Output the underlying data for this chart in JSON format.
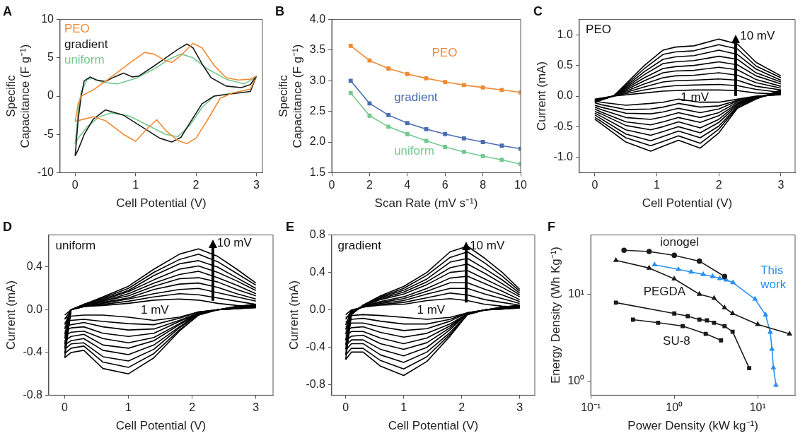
{
  "chart_data": [
    {
      "type": "line",
      "title": "A",
      "xlabel": "Cell Potential (V)",
      "ylabel": "Specific  Capacitance (F g⁻¹)",
      "xlim": [
        -0.25,
        3.1
      ],
      "xticks": [
        0,
        1,
        2,
        3
      ],
      "ylim": [
        -10,
        10
      ],
      "yticks": [
        -10,
        -5,
        0,
        5,
        10
      ],
      "legend": "top left",
      "series": [
        {
          "name": "PEO",
          "color": "#f08a35",
          "x": [
            0,
            0.05,
            0.1,
            0.3,
            0.6,
            0.9,
            1.15,
            1.3,
            1.5,
            1.6,
            1.75,
            1.95,
            2.1,
            2.3,
            2.5,
            2.7,
            2.9,
            3
          ],
          "values": [
            -3.3,
            -1,
            0,
            0.8,
            2.5,
            4.3,
            5.7,
            5.5,
            4.6,
            4.4,
            5.3,
            6.9,
            6.3,
            4,
            2.4,
            2.1,
            2.2,
            2.6
          ]
        },
        {
          "name": "gradient",
          "color": "#1a1a1a",
          "x": [
            0,
            0.05,
            0.1,
            0.15,
            0.25,
            0.35,
            0.5,
            0.65,
            0.8,
            0.95,
            1.05,
            1.3,
            1.5,
            1.7,
            1.85,
            1.95,
            2.1,
            2.25,
            2.5,
            2.75,
            2.9,
            3
          ],
          "values": [
            -7.8,
            -3,
            0,
            2,
            2.5,
            2.1,
            1.9,
            2.5,
            3,
            2.5,
            2.6,
            3.9,
            5,
            6.1,
            6.8,
            6.3,
            4.2,
            2.4,
            1.3,
            1.1,
            1.5,
            2.6
          ]
        },
        {
          "name": "uniform",
          "color": "#74c98e",
          "x": [
            0,
            0.05,
            0.1,
            0.2,
            0.3,
            0.45,
            0.7,
            1,
            1.3,
            1.55,
            1.75,
            1.95,
            2.2,
            2.5,
            2.8,
            3
          ],
          "values": [
            -6.3,
            -2,
            0.5,
            2.2,
            2.3,
            1.8,
            1.6,
            2.3,
            3.5,
            4.8,
            5.5,
            5,
            3.5,
            2.2,
            1.6,
            2.5
          ]
        },
        {
          "color": "#f08a35",
          "x": [
            3,
            2.9,
            2.6,
            2.4,
            2.2,
            2,
            1.85,
            1.7,
            1.5,
            1.35,
            1.2,
            1,
            0.8,
            0.5,
            0.3,
            0.1,
            0
          ],
          "values": [
            2.6,
            0.9,
            0.4,
            -0.3,
            -3,
            -5.5,
            -6.2,
            -5.8,
            -4.5,
            -3.1,
            -4.2,
            -5.9,
            -5,
            -3.2,
            -2.7,
            -3.1,
            -3.3
          ]
        },
        {
          "color": "#1a1a1a",
          "x": [
            3,
            2.9,
            2.6,
            2.3,
            2.1,
            1.9,
            1.75,
            1.6,
            1.4,
            1.1,
            0.8,
            0.5,
            0.3,
            0.15,
            0.05,
            0
          ],
          "values": [
            2.6,
            0.6,
            0.3,
            0,
            -1,
            -3.5,
            -5.4,
            -6,
            -5.5,
            -4,
            -2.5,
            -1.8,
            -3,
            -5,
            -7,
            -7.8
          ]
        },
        {
          "color": "#74c98e",
          "x": [
            3,
            2.9,
            2.6,
            2.3,
            2.1,
            1.9,
            1.7,
            1.5,
            1.2,
            0.9,
            0.6,
            0.4,
            0.2,
            0.05,
            0
          ],
          "values": [
            2.5,
            0.9,
            0.4,
            0,
            -1.5,
            -3.8,
            -5.3,
            -5,
            -3.8,
            -2.6,
            -2.2,
            -2.7,
            -4,
            -5.5,
            -6.3
          ]
        }
      ]
    },
    {
      "type": "line",
      "title": "B",
      "xlabel": "Scan Rate (mV s⁻¹)",
      "ylabel": "Specific Capacitance (F g⁻¹)",
      "marker": "square",
      "x": [
        1,
        2,
        3,
        4,
        5,
        6,
        7,
        8,
        9,
        10
      ],
      "xlim": [
        0,
        10
      ],
      "xticks": [
        0,
        2,
        4,
        6,
        8,
        10
      ],
      "ylim": [
        1.5,
        4
      ],
      "yticks": [
        {
          "value": 1.5,
          "label": "1.5"
        },
        {
          "value": 2,
          "label": "2.0"
        },
        {
          "value": 2.5,
          "label": "2.5"
        },
        {
          "value": 3,
          "label": "3.0"
        },
        {
          "value": 3.5,
          "label": "3.5"
        },
        {
          "value": 4,
          "label": "4.0"
        }
      ],
      "series": [
        {
          "name": "PEO",
          "color": "#f08a35",
          "values": [
            3.57,
            3.33,
            3.2,
            3.11,
            3.04,
            2.98,
            2.93,
            2.89,
            2.85,
            2.81
          ]
        },
        {
          "name": "gradient",
          "color": "#4a6cb3",
          "values": [
            3.0,
            2.63,
            2.44,
            2.31,
            2.21,
            2.13,
            2.06,
            2.0,
            1.94,
            1.89
          ]
        },
        {
          "name": "uniform",
          "color": "#74c98e",
          "values": [
            2.8,
            2.43,
            2.25,
            2.13,
            2.02,
            1.92,
            1.84,
            1.77,
            1.71,
            1.64
          ]
        }
      ]
    },
    {
      "type": "line",
      "title": "C",
      "xlabel": "Cell Potential (V)",
      "ylabel": "Current (mA)",
      "xlim": [
        -0.25,
        3.23
      ],
      "xticks": [
        0,
        1,
        2,
        3
      ],
      "ylim": [
        -1.25,
        1.25
      ],
      "yticks": [
        {
          "value": -1,
          "label": "-1.0"
        },
        {
          "value": -0.5,
          "label": "-0.5"
        },
        {
          "value": 0,
          "label": "0.0"
        },
        {
          "value": 0.5,
          "label": "0.5"
        },
        {
          "value": 1,
          "label": "1.0"
        }
      ],
      "annotations": [
        "PEO",
        "10 mV",
        "1 mV"
      ],
      "x": [
        0,
        0.3,
        0.8,
        1.1,
        1.3,
        1.6,
        2,
        2.3,
        2.6,
        3
      ],
      "series": [
        {
          "color": "#000000",
          "values": [
            -0.05,
            0,
            0.05,
            0.08,
            0.09,
            0.1,
            0.1,
            0.09,
            0.05,
            0.03
          ]
        },
        {
          "color": "#000000",
          "values": [
            -0.06,
            0,
            0.1,
            0.15,
            0.17,
            0.18,
            0.19,
            0.17,
            0.11,
            0.06
          ]
        },
        {
          "color": "#000000",
          "values": [
            -0.06,
            0,
            0.15,
            0.23,
            0.25,
            0.26,
            0.28,
            0.26,
            0.16,
            0.1
          ]
        },
        {
          "color": "#000000",
          "values": [
            -0.07,
            0,
            0.2,
            0.3,
            0.33,
            0.34,
            0.38,
            0.34,
            0.22,
            0.13
          ]
        },
        {
          "color": "#000000",
          "values": [
            -0.07,
            0,
            0.25,
            0.38,
            0.41,
            0.42,
            0.47,
            0.43,
            0.27,
            0.16
          ]
        },
        {
          "color": "#000000",
          "values": [
            -0.08,
            0,
            0.3,
            0.45,
            0.48,
            0.5,
            0.56,
            0.51,
            0.33,
            0.2
          ]
        },
        {
          "color": "#000000",
          "values": [
            -0.08,
            0,
            0.35,
            0.53,
            0.56,
            0.58,
            0.65,
            0.6,
            0.38,
            0.23
          ]
        },
        {
          "color": "#000000",
          "values": [
            -0.09,
            0,
            0.4,
            0.6,
            0.64,
            0.66,
            0.75,
            0.68,
            0.44,
            0.26
          ]
        },
        {
          "color": "#000000",
          "values": [
            -0.09,
            0,
            0.45,
            0.68,
            0.72,
            0.74,
            0.84,
            0.77,
            0.49,
            0.3
          ]
        },
        {
          "color": "#000000",
          "values": [
            -0.1,
            0,
            0.5,
            0.75,
            0.8,
            0.82,
            0.93,
            0.85,
            0.55,
            0.33
          ]
        },
        {
          "color": "#000000",
          "x": [
            3,
            2.6,
            2.3,
            2,
            1.7,
            1.35,
            1.1,
            0.9,
            0.5,
            0.1,
            0
          ],
          "values": [
            0.02,
            0,
            -0.05,
            -0.1,
            -0.1,
            -0.05,
            -0.1,
            -0.12,
            -0.15,
            -0.1,
            -0.08
          ]
        },
        {
          "color": "#000000",
          "x": [
            3,
            2.6,
            2.3,
            2,
            1.7,
            1.35,
            1.1,
            0.9,
            0.5,
            0.1,
            0
          ],
          "values": [
            0.03,
            -0.01,
            -0.07,
            -0.16,
            -0.18,
            -0.12,
            -0.18,
            -0.21,
            -0.22,
            -0.14,
            -0.11
          ]
        },
        {
          "color": "#000000",
          "x": [
            3,
            2.6,
            2.3,
            2,
            1.7,
            1.35,
            1.1,
            0.9,
            0.5,
            0.1,
            0
          ],
          "values": [
            0.04,
            -0.01,
            -0.08,
            -0.21,
            -0.27,
            -0.2,
            -0.26,
            -0.29,
            -0.28,
            -0.18,
            -0.15
          ]
        },
        {
          "color": "#000000",
          "x": [
            3,
            2.6,
            2.3,
            2,
            1.7,
            1.35,
            1.1,
            0.9,
            0.5,
            0.1,
            0
          ],
          "values": [
            0.05,
            -0.02,
            -0.1,
            -0.27,
            -0.35,
            -0.27,
            -0.34,
            -0.38,
            -0.35,
            -0.22,
            -0.18
          ]
        },
        {
          "color": "#000000",
          "x": [
            3,
            2.6,
            2.3,
            2,
            1.7,
            1.35,
            1.1,
            0.9,
            0.5,
            0.1,
            0
          ],
          "values": [
            0.06,
            -0.02,
            -0.12,
            -0.32,
            -0.43,
            -0.35,
            -0.42,
            -0.47,
            -0.42,
            -0.26,
            -0.21
          ]
        },
        {
          "color": "#000000",
          "x": [
            3,
            2.6,
            2.3,
            2,
            1.7,
            1.35,
            1.1,
            0.9,
            0.5,
            0.1,
            0
          ],
          "values": [
            0.06,
            -0.03,
            -0.13,
            -0.38,
            -0.52,
            -0.42,
            -0.5,
            -0.55,
            -0.48,
            -0.29,
            -0.25
          ]
        },
        {
          "color": "#000000",
          "x": [
            3,
            2.6,
            2.3,
            2,
            1.7,
            1.35,
            1.1,
            0.9,
            0.5,
            0.1,
            0
          ],
          "values": [
            0.07,
            -0.03,
            -0.15,
            -0.43,
            -0.6,
            -0.5,
            -0.58,
            -0.64,
            -0.55,
            -0.33,
            -0.28
          ]
        },
        {
          "color": "#000000",
          "x": [
            3,
            2.6,
            2.3,
            2,
            1.7,
            1.35,
            1.1,
            0.9,
            0.5,
            0.1,
            0
          ],
          "values": [
            0.08,
            -0.04,
            -0.17,
            -0.49,
            -0.68,
            -0.57,
            -0.66,
            -0.73,
            -0.62,
            -0.37,
            -0.31
          ]
        },
        {
          "color": "#000000",
          "x": [
            3,
            2.6,
            2.3,
            2,
            1.7,
            1.35,
            1.1,
            0.9,
            0.5,
            0.1,
            0
          ],
          "values": [
            0.09,
            -0.04,
            -0.18,
            -0.54,
            -0.77,
            -0.65,
            -0.74,
            -0.81,
            -0.68,
            -0.41,
            -0.35
          ]
        },
        {
          "color": "#000000",
          "x": [
            3,
            2.6,
            2.3,
            2,
            1.7,
            1.35,
            1.1,
            0.9,
            0.5,
            0.1,
            0
          ],
          "values": [
            0.1,
            -0.05,
            -0.2,
            -0.6,
            -0.85,
            -0.72,
            -0.82,
            -0.9,
            -0.75,
            -0.45,
            -0.38
          ]
        }
      ]
    },
    {
      "type": "line",
      "title": "D",
      "xlabel": "Cell Potential (V)",
      "ylabel": "Current (mA)",
      "xlim": [
        -0.25,
        3.27
      ],
      "xticks": [
        0,
        1,
        2,
        3
      ],
      "ylim": [
        -0.8,
        0.7
      ],
      "yticks": [
        {
          "value": -0.8,
          "label": "-0.8"
        },
        {
          "value": -0.4,
          "label": "-0.4"
        },
        {
          "value": 0,
          "label": "0.0"
        },
        {
          "value": 0.4,
          "label": "0.4"
        }
      ],
      "annotations": [
        "uniform",
        "10 mV",
        "1 mV"
      ],
      "x": [
        0,
        0.1,
        0.3,
        0.6,
        1,
        1.4,
        1.8,
        2.1,
        2.4,
        2.7,
        3
      ],
      "series": [
        {
          "color": "#000000",
          "values": [
            -0.05,
            0,
            0.03,
            0.04,
            0.06,
            0.09,
            0.1,
            0.09,
            0.06,
            0.04,
            0.03
          ]
        },
        {
          "color": "#000000",
          "values": [
            -0.09,
            0,
            0.03,
            0.05,
            0.08,
            0.12,
            0.15,
            0.14,
            0.11,
            0.08,
            0.05
          ]
        },
        {
          "color": "#000000",
          "values": [
            -0.14,
            0,
            0.03,
            0.06,
            0.1,
            0.15,
            0.19,
            0.2,
            0.16,
            0.12,
            0.08
          ]
        },
        {
          "color": "#000000",
          "values": [
            -0.18,
            0,
            0.04,
            0.07,
            0.11,
            0.19,
            0.24,
            0.25,
            0.21,
            0.15,
            0.1
          ]
        },
        {
          "color": "#000000",
          "values": [
            -0.23,
            0,
            0.04,
            0.08,
            0.13,
            0.22,
            0.29,
            0.3,
            0.26,
            0.19,
            0.13
          ]
        },
        {
          "color": "#000000",
          "values": [
            -0.27,
            0,
            0.04,
            0.08,
            0.15,
            0.25,
            0.33,
            0.36,
            0.3,
            0.23,
            0.15
          ]
        },
        {
          "color": "#000000",
          "values": [
            -0.32,
            0,
            0.04,
            0.09,
            0.17,
            0.28,
            0.38,
            0.41,
            0.35,
            0.27,
            0.18
          ]
        },
        {
          "color": "#000000",
          "values": [
            -0.36,
            0,
            0.05,
            0.1,
            0.18,
            0.32,
            0.43,
            0.46,
            0.4,
            0.3,
            0.2
          ]
        },
        {
          "color": "#000000",
          "values": [
            -0.41,
            0,
            0.05,
            0.11,
            0.2,
            0.35,
            0.47,
            0.52,
            0.45,
            0.34,
            0.23
          ]
        },
        {
          "color": "#000000",
          "values": [
            -0.45,
            0,
            0.05,
            0.12,
            0.22,
            0.38,
            0.52,
            0.57,
            0.5,
            0.38,
            0.25
          ]
        },
        {
          "color": "#000000",
          "x": [
            3,
            2.7,
            2.4,
            2.1,
            1.8,
            1.4,
            1,
            0.6,
            0.3,
            0.1,
            0
          ],
          "values": [
            0.02,
            0.01,
            0,
            -0.02,
            -0.07,
            -0.1,
            -0.07,
            -0.05,
            -0.05,
            -0.06,
            -0.08
          ]
        },
        {
          "color": "#000000",
          "x": [
            3,
            2.7,
            2.4,
            2.1,
            1.8,
            1.4,
            1,
            0.6,
            0.3,
            0.1,
            0
          ],
          "values": [
            0.02,
            0.01,
            0,
            -0.02,
            -0.08,
            -0.14,
            -0.13,
            -0.11,
            -0.09,
            -0.1,
            -0.12
          ]
        },
        {
          "color": "#000000",
          "x": [
            3,
            2.7,
            2.4,
            2.1,
            1.8,
            1.4,
            1,
            0.6,
            0.3,
            0.1,
            0
          ],
          "values": [
            0.03,
            0.01,
            0,
            -0.03,
            -0.1,
            -0.18,
            -0.19,
            -0.16,
            -0.12,
            -0.14,
            -0.16
          ]
        },
        {
          "color": "#000000",
          "x": [
            3,
            2.7,
            2.4,
            2.1,
            1.8,
            1.4,
            1,
            0.6,
            0.3,
            0.1,
            0
          ],
          "values": [
            0.03,
            0.02,
            0,
            -0.03,
            -0.11,
            -0.22,
            -0.25,
            -0.22,
            -0.16,
            -0.17,
            -0.2
          ]
        },
        {
          "color": "#000000",
          "x": [
            3,
            2.7,
            2.4,
            2.1,
            1.8,
            1.4,
            1,
            0.6,
            0.3,
            0.1,
            0
          ],
          "values": [
            0.03,
            0.02,
            0,
            -0.03,
            -0.13,
            -0.26,
            -0.31,
            -0.27,
            -0.2,
            -0.21,
            -0.24
          ]
        },
        {
          "color": "#000000",
          "x": [
            3,
            2.7,
            2.4,
            2.1,
            1.8,
            1.4,
            1,
            0.6,
            0.3,
            0.1,
            0
          ],
          "values": [
            0.04,
            0.02,
            0,
            -0.04,
            -0.14,
            -0.29,
            -0.36,
            -0.33,
            -0.23,
            -0.25,
            -0.29
          ]
        },
        {
          "color": "#000000",
          "x": [
            3,
            2.7,
            2.4,
            2.1,
            1.8,
            1.4,
            1,
            0.6,
            0.3,
            0.1,
            0
          ],
          "values": [
            0.04,
            0.02,
            0,
            -0.04,
            -0.16,
            -0.33,
            -0.42,
            -0.38,
            -0.27,
            -0.29,
            -0.33
          ]
        },
        {
          "color": "#000000",
          "x": [
            3,
            2.7,
            2.4,
            2.1,
            1.8,
            1.4,
            1,
            0.6,
            0.3,
            0.1,
            0
          ],
          "values": [
            0.04,
            0.03,
            0,
            -0.04,
            -0.17,
            -0.37,
            -0.48,
            -0.44,
            -0.31,
            -0.32,
            -0.37
          ]
        },
        {
          "color": "#000000",
          "x": [
            3,
            2.7,
            2.4,
            2.1,
            1.8,
            1.4,
            1,
            0.6,
            0.3,
            0.1,
            0
          ],
          "values": [
            0.05,
            0.03,
            0,
            -0.05,
            -0.19,
            -0.41,
            -0.54,
            -0.49,
            -0.34,
            -0.36,
            -0.41
          ]
        },
        {
          "color": "#000000",
          "x": [
            3,
            2.7,
            2.4,
            2.1,
            1.8,
            1.4,
            1,
            0.6,
            0.3,
            0.1,
            0
          ],
          "values": [
            0.05,
            0.03,
            0,
            -0.05,
            -0.2,
            -0.45,
            -0.6,
            -0.55,
            -0.38,
            -0.4,
            -0.45
          ]
        }
      ]
    },
    {
      "type": "line",
      "title": "E",
      "xlabel": "Cell Potential (V)",
      "ylabel": "Current (mA)",
      "xlim": [
        -0.24,
        3.26
      ],
      "xticks": [
        0,
        1,
        2,
        3
      ],
      "ylim": [
        -0.91,
        0.8
      ],
      "yticks": [
        {
          "value": -0.8,
          "label": "-0.8"
        },
        {
          "value": -0.4,
          "label": "-0.4"
        },
        {
          "value": 0,
          "label": "0.0"
        },
        {
          "value": 0.4,
          "label": "0.4"
        },
        {
          "value": 0.8,
          "label": "0.8"
        }
      ],
      "annotations": [
        "gradient",
        "10 mV",
        "1 mV"
      ],
      "x": [
        0,
        0.1,
        0.3,
        0.6,
        1,
        1.4,
        1.8,
        2.1,
        2.4,
        2.7,
        3
      ],
      "series": [
        {
          "color": "#000000",
          "values": [
            -0.05,
            0,
            0.03,
            0.05,
            0.06,
            0.1,
            0.12,
            0.1,
            0.06,
            0.04,
            0.03
          ]
        },
        {
          "color": "#000000",
          "values": [
            -0.1,
            -0.01,
            0.03,
            0.06,
            0.08,
            0.13,
            0.18,
            0.16,
            0.11,
            0.08,
            0.05
          ]
        },
        {
          "color": "#000000",
          "values": [
            -0.16,
            -0.01,
            0.03,
            0.07,
            0.1,
            0.17,
            0.23,
            0.23,
            0.17,
            0.12,
            0.07
          ]
        },
        {
          "color": "#000000",
          "values": [
            -0.21,
            -0.02,
            0.04,
            0.08,
            0.12,
            0.2,
            0.29,
            0.29,
            0.22,
            0.16,
            0.09
          ]
        },
        {
          "color": "#000000",
          "values": [
            -0.26,
            -0.02,
            0.04,
            0.09,
            0.14,
            0.23,
            0.34,
            0.36,
            0.28,
            0.2,
            0.11
          ]
        },
        {
          "color": "#000000",
          "values": [
            -0.32,
            -0.03,
            0.04,
            0.11,
            0.17,
            0.27,
            0.4,
            0.42,
            0.33,
            0.24,
            0.14
          ]
        },
        {
          "color": "#000000",
          "values": [
            -0.37,
            -0.03,
            0.04,
            0.12,
            0.19,
            0.3,
            0.45,
            0.49,
            0.39,
            0.28,
            0.16
          ]
        },
        {
          "color": "#000000",
          "values": [
            -0.42,
            -0.04,
            0.05,
            0.13,
            0.21,
            0.33,
            0.51,
            0.55,
            0.44,
            0.32,
            0.18
          ]
        },
        {
          "color": "#000000",
          "values": [
            -0.48,
            -0.04,
            0.05,
            0.14,
            0.23,
            0.37,
            0.56,
            0.62,
            0.5,
            0.36,
            0.2
          ]
        },
        {
          "color": "#000000",
          "values": [
            -0.53,
            -0.05,
            0.05,
            0.15,
            0.25,
            0.4,
            0.62,
            0.68,
            0.55,
            0.4,
            0.22
          ]
        },
        {
          "color": "#000000",
          "x": [
            3,
            2.7,
            2.4,
            2.1,
            1.8,
            1.4,
            1,
            0.6,
            0.3,
            0.1,
            0
          ],
          "values": [
            0.02,
            0.01,
            0,
            -0.03,
            -0.08,
            -0.1,
            -0.08,
            -0.06,
            -0.05,
            -0.06,
            -0.08
          ]
        },
        {
          "color": "#000000",
          "x": [
            3,
            2.7,
            2.4,
            2.1,
            1.8,
            1.4,
            1,
            0.6,
            0.3,
            0.1,
            0
          ],
          "values": [
            0.02,
            0.01,
            0,
            -0.03,
            -0.1,
            -0.15,
            -0.15,
            -0.12,
            -0.09,
            -0.1,
            -0.13
          ]
        },
        {
          "color": "#000000",
          "x": [
            3,
            2.7,
            2.4,
            2.1,
            1.8,
            1.4,
            1,
            0.6,
            0.3,
            0.1,
            0
          ],
          "values": [
            0.03,
            0.01,
            0,
            -0.03,
            -0.12,
            -0.2,
            -0.22,
            -0.18,
            -0.14,
            -0.14,
            -0.18
          ]
        },
        {
          "color": "#000000",
          "x": [
            3,
            2.7,
            2.4,
            2.1,
            1.8,
            1.4,
            1,
            0.6,
            0.3,
            0.1,
            0
          ],
          "values": [
            0.03,
            0.02,
            0,
            -0.04,
            -0.15,
            -0.25,
            -0.29,
            -0.24,
            -0.18,
            -0.19,
            -0.23
          ]
        },
        {
          "color": "#000000",
          "x": [
            3,
            2.7,
            2.4,
            2.1,
            1.8,
            1.4,
            1,
            0.6,
            0.3,
            0.1,
            0
          ],
          "values": [
            0.03,
            0.02,
            0,
            -0.04,
            -0.17,
            -0.3,
            -0.36,
            -0.3,
            -0.23,
            -0.23,
            -0.28
          ]
        },
        {
          "color": "#000000",
          "x": [
            3,
            2.7,
            2.4,
            2.1,
            1.8,
            1.4,
            1,
            0.6,
            0.3,
            0.1,
            0
          ],
          "values": [
            0.04,
            0.02,
            0,
            -0.04,
            -0.19,
            -0.35,
            -0.42,
            -0.36,
            -0.27,
            -0.28,
            -0.33
          ]
        },
        {
          "color": "#000000",
          "x": [
            3,
            2.7,
            2.4,
            2.1,
            1.8,
            1.4,
            1,
            0.6,
            0.3,
            0.1,
            0
          ],
          "values": [
            0.04,
            0.02,
            0,
            -0.04,
            -0.21,
            -0.4,
            -0.49,
            -0.42,
            -0.32,
            -0.32,
            -0.38
          ]
        },
        {
          "color": "#000000",
          "x": [
            3,
            2.7,
            2.4,
            2.1,
            1.8,
            1.4,
            1,
            0.6,
            0.3,
            0.1,
            0
          ],
          "values": [
            0.04,
            0.03,
            0,
            -0.05,
            -0.24,
            -0.45,
            -0.56,
            -0.48,
            -0.36,
            -0.36,
            -0.43
          ]
        },
        {
          "color": "#000000",
          "x": [
            3,
            2.7,
            2.4,
            2.1,
            1.8,
            1.4,
            1,
            0.6,
            0.3,
            0.1,
            0
          ],
          "values": [
            0.05,
            0.03,
            0,
            -0.05,
            -0.26,
            -0.5,
            -0.63,
            -0.54,
            -0.41,
            -0.41,
            -0.48
          ]
        },
        {
          "color": "#000000",
          "x": [
            3,
            2.7,
            2.4,
            2.1,
            1.8,
            1.4,
            1,
            0.6,
            0.3,
            0.1,
            0
          ],
          "values": [
            0.05,
            0.03,
            0,
            -0.05,
            -0.28,
            -0.55,
            -0.7,
            -0.6,
            -0.45,
            -0.45,
            -0.53
          ]
        }
      ]
    },
    {
      "type": "line",
      "title": "F",
      "xlabel": "Power Density (kW kg⁻¹)",
      "ylabel": "Energy Density (Wh Kg⁻¹)",
      "log": "xy",
      "xlim": [
        0.1,
        28
      ],
      "xticks": [
        {
          "value": 0.1,
          "label": "10⁻¹"
        },
        {
          "value": 1,
          "label": "10⁰"
        },
        {
          "value": 10,
          "label": "10¹"
        }
      ],
      "ylim": [
        0.69,
        48
      ],
      "yticks": [
        {
          "value": 1,
          "label": "10⁰"
        },
        {
          "value": 10,
          "label": "10¹"
        }
      ],
      "series": [
        {
          "name": "ionogel",
          "color": "#1a1a1a",
          "marker": "circle",
          "x": [
            0.25,
            0.5,
            1,
            2,
            4
          ],
          "values": [
            32,
            31,
            28,
            24,
            16
          ]
        },
        {
          "name": "PEGDA",
          "color": "#1a1a1a",
          "marker": "triangle",
          "x": [
            0.2,
            0.5,
            1,
            2,
            3,
            4,
            5,
            10,
            24
          ],
          "values": [
            24.5,
            20,
            15,
            10,
            9,
            7,
            6,
            4.5,
            3.5
          ]
        },
        {
          "color": "#1a1a1a",
          "marker": "square",
          "x": [
            0.2,
            1,
            1.45,
            2,
            2.46,
            3,
            4,
            5,
            7.9
          ],
          "values": [
            8,
            6,
            5.6,
            5.1,
            5,
            4.7,
            4.3,
            3.7,
            1.41
          ]
        },
        {
          "name": "SU-8",
          "color": "#1a1a1a",
          "marker": "square",
          "x": [
            0.32,
            0.64,
            1.26,
            2.38,
            3.63
          ],
          "values": [
            5.1,
            4.7,
            4.3,
            3.5,
            2.95
          ]
        },
        {
          "name": "This work",
          "color": "#2a8ff0",
          "marker": "triangle",
          "x": [
            0.58,
            1.12,
            1.59,
            2.22,
            2.87,
            3.5,
            4.18,
            5.05,
            9.25,
            12.4,
            14.1,
            14.8,
            15.4,
            16.5
          ],
          "values": [
            21.8,
            19.3,
            18,
            16.9,
            16,
            15.2,
            14.6,
            13.6,
            8.8,
            5.8,
            3.66,
            2.34,
            1.43,
            0.9
          ]
        }
      ]
    }
  ]
}
